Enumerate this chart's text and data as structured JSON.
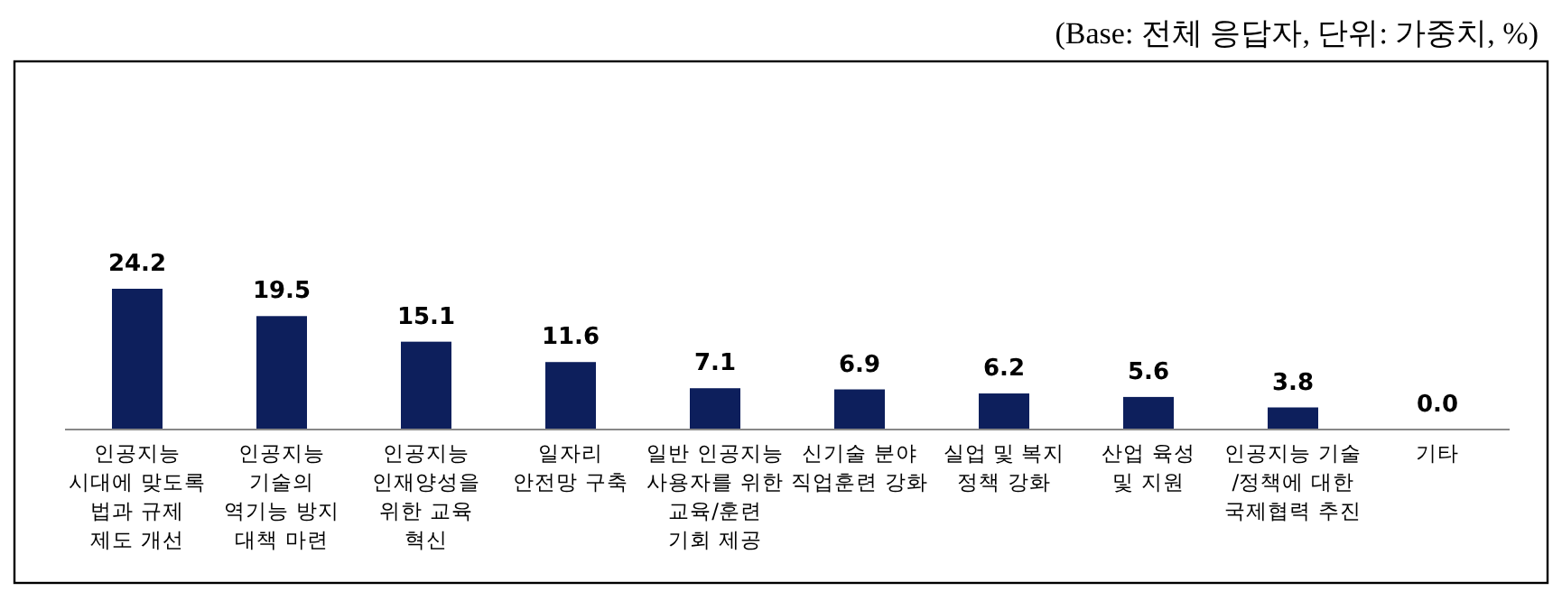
{
  "chart_data": {
    "type": "bar",
    "annotations": [
      "(Base: 전체 응답자, 단위: 가중치, %)"
    ],
    "categories": [
      "인공지능\n시대에 맞도록\n법과 규제\n제도 개선",
      "인공지능\n기술의\n역기능 방지\n대책 마련",
      "인공지능\n인재양성을\n위한 교육\n혁신",
      "일자리\n안전망 구축",
      "일반 인공지능\n사용자를 위한\n교육/훈련\n기회 제공",
      "신기술 분야\n직업훈련 강화",
      "실업 및 복지\n정책 강화",
      "산업 육성\n및 지원",
      "인공지능 기술\n/정책에 대한\n국제협력 추진",
      "기타"
    ],
    "values": [
      24.2,
      19.5,
      15.1,
      11.6,
      7.1,
      6.9,
      6.2,
      5.6,
      3.8,
      0.0
    ],
    "color": "#0d1f5c",
    "value_labels": [
      "24.2",
      "19.5",
      "15.1",
      "11.6",
      "7.1",
      "6.9",
      "6.2",
      "5.6",
      "3.8",
      "0.0"
    ]
  }
}
